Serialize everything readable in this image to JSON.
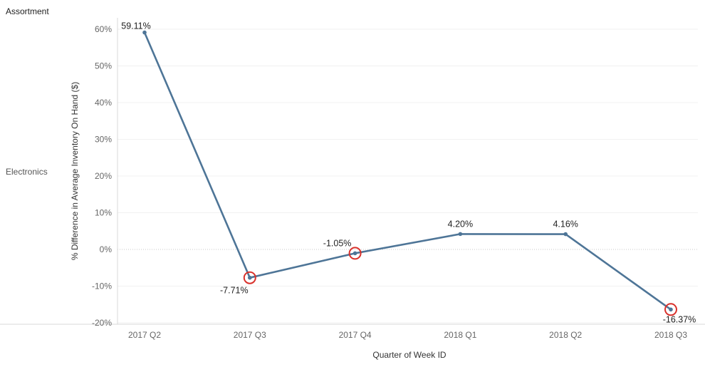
{
  "header": {
    "row_dimension": "Assortment"
  },
  "rows": {
    "label": "Electronics"
  },
  "chart_data": {
    "type": "line",
    "title": "",
    "xlabel": "Quarter of Week ID",
    "ylabel": "% Difference in Average Inventory On Hand ($)",
    "categories": [
      "2017 Q2",
      "2017 Q3",
      "2017 Q4",
      "2018 Q1",
      "2018 Q2",
      "2018 Q3"
    ],
    "series": [
      {
        "values": [
          59.11,
          -7.71,
          -1.05,
          4.2,
          4.16,
          -16.37
        ],
        "color": "#4e7597"
      }
    ],
    "data_labels": [
      "59.11%",
      "-7.71%",
      "-1.05%",
      "4.20%",
      "4.16%",
      "-16.37%"
    ],
    "highlighted_categories": [
      "2017 Q3",
      "2017 Q4",
      "2018 Q3"
    ],
    "highlight_color": "#d9312b",
    "ylim": [
      -22,
      62
    ],
    "yticks": [
      60,
      50,
      40,
      30,
      20,
      10,
      0,
      -10,
      -20
    ],
    "ytick_labels": [
      "60%",
      "50%",
      "40%",
      "30%",
      "20%",
      "10%",
      "0%",
      "-10%",
      "-20%"
    ],
    "grid": true,
    "zero_line": "dotted",
    "legend": "none"
  }
}
